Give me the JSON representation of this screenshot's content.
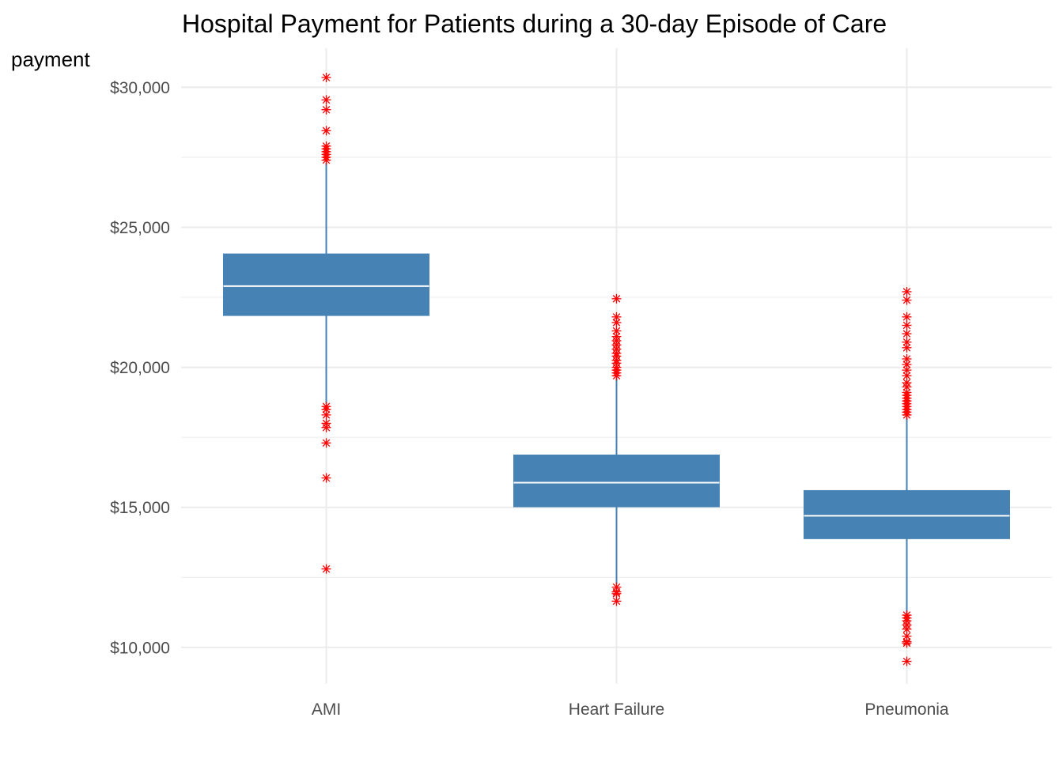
{
  "chart_data": {
    "type": "boxplot",
    "title": "Hospital Payment for Patients during a 30-day Episode of Care",
    "xlabel": "",
    "ylabel": "payment",
    "ylim": [
      8700,
      31400
    ],
    "y_ticks": [
      10000,
      15000,
      20000,
      25000,
      30000
    ],
    "y_tick_labels": [
      "$10,000",
      "$15,000",
      "$20,000",
      "$25,000",
      "$30,000"
    ],
    "y_minor_ticks": [
      12500,
      17500,
      22500,
      27500
    ],
    "grid": true,
    "legend": "none",
    "categories": [
      "AMI",
      "Heart Failure",
      "Pneumonia"
    ],
    "boxes": [
      {
        "category": "AMI",
        "whisker_low": 18700,
        "q1": 21850,
        "median": 22900,
        "q3": 24050,
        "whisker_high": 27300,
        "outliers": [
          30350,
          29550,
          29200,
          28450,
          27900,
          27800,
          27700,
          27600,
          27500,
          27400,
          18600,
          18500,
          18300,
          18000,
          17850,
          17300,
          16050,
          12800
        ]
      },
      {
        "category": "Heart Failure",
        "whisker_low": 12250,
        "q1": 15020,
        "median": 15880,
        "q3": 16870,
        "whisker_high": 19600,
        "outliers": [
          22450,
          21800,
          21600,
          21300,
          21100,
          20950,
          20800,
          20650,
          20500,
          20400,
          20250,
          20150,
          20000,
          19900,
          19800,
          19700,
          12150,
          11980,
          11920,
          11650
        ]
      },
      {
        "category": "Pneumonia",
        "whisker_low": 11200,
        "q1": 13880,
        "median": 14700,
        "q3": 15600,
        "whisker_high": 18200,
        "outliers": [
          22700,
          22400,
          21800,
          21500,
          21200,
          20900,
          20700,
          20300,
          20100,
          19900,
          19700,
          19450,
          19300,
          19100,
          19000,
          18900,
          18800,
          18700,
          18600,
          18500,
          18400,
          18300,
          11150,
          11050,
          10950,
          10800,
          10650,
          10400,
          10200,
          10150,
          9500
        ]
      }
    ],
    "colors": {
      "box": "#4682b4",
      "median": "#ffffff",
      "outlier": "#ff0000",
      "grid": "#ebebeb"
    }
  }
}
